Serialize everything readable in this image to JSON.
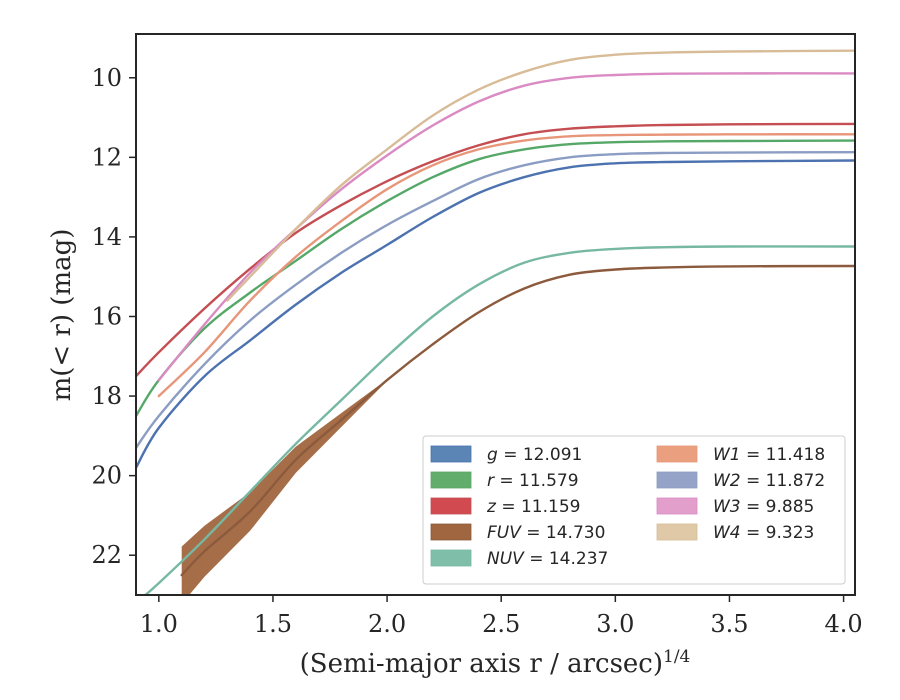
{
  "chart_data": {
    "type": "line",
    "xlabel": "(Semi-major axis r / arcsec)",
    "xlabel_exponent": "1/4",
    "ylabel": "m(< r) (mag)",
    "xlim": [
      0.9,
      4.05
    ],
    "ylim": [
      23.0,
      8.9
    ],
    "y_inverted": true,
    "x_ticks": [
      1.0,
      1.5,
      2.0,
      2.5,
      3.0,
      3.5,
      4.0
    ],
    "x_tick_labels": [
      "1.0",
      "1.5",
      "2.0",
      "2.5",
      "3.0",
      "3.5",
      "4.0"
    ],
    "y_ticks": [
      10,
      12,
      14,
      16,
      18,
      20,
      22
    ],
    "y_tick_labels": [
      "10",
      "12",
      "14",
      "16",
      "18",
      "20",
      "22"
    ],
    "grid": false,
    "legend_position": "lower-right",
    "series": [
      {
        "name": "g",
        "label_value": "12.091",
        "color": "#4c72b0",
        "fill": "#5a85b5",
        "x": [
          0.9,
          1.0,
          1.2,
          1.4,
          1.6,
          1.8,
          2.0,
          2.2,
          2.4,
          2.6,
          2.8,
          3.0,
          3.2,
          3.5,
          4.05
        ],
        "y": [
          19.8,
          18.8,
          17.5,
          16.6,
          15.7,
          14.9,
          14.2,
          13.5,
          12.9,
          12.5,
          12.25,
          12.15,
          12.12,
          12.1,
          12.08
        ]
      },
      {
        "name": "r",
        "label_value": "11.579",
        "color": "#55a868",
        "fill": "#62ad6c",
        "x": [
          0.9,
          1.0,
          1.2,
          1.4,
          1.6,
          1.8,
          2.0,
          2.2,
          2.4,
          2.6,
          2.8,
          3.0,
          3.2,
          3.5,
          4.05
        ],
        "y": [
          18.5,
          17.6,
          16.3,
          15.4,
          14.6,
          13.8,
          13.1,
          12.5,
          12.05,
          11.8,
          11.67,
          11.62,
          11.6,
          11.59,
          11.58
        ]
      },
      {
        "name": "z",
        "label_value": "11.159",
        "color": "#c44e52",
        "fill": "#d04a4f",
        "x": [
          0.9,
          1.0,
          1.2,
          1.4,
          1.6,
          1.8,
          2.0,
          2.2,
          2.4,
          2.6,
          2.8,
          3.0,
          3.2,
          3.5,
          4.05
        ],
        "y": [
          17.5,
          16.9,
          15.8,
          14.8,
          13.9,
          13.2,
          12.6,
          12.1,
          11.7,
          11.42,
          11.28,
          11.22,
          11.19,
          11.17,
          11.16
        ]
      },
      {
        "name": "FUV",
        "label_value": "14.730",
        "color": "#8c5a3c",
        "fill": "#a0663f",
        "x": [
          1.1,
          1.2,
          1.4,
          1.6,
          1.8,
          2.0,
          2.2,
          2.4,
          2.6,
          2.8,
          3.0,
          3.2,
          3.5,
          4.05
        ],
        "y": [
          22.5,
          21.9,
          20.9,
          19.6,
          18.6,
          17.6,
          16.7,
          15.9,
          15.3,
          14.95,
          14.82,
          14.77,
          14.74,
          14.73
        ]
      },
      {
        "name": "NUV",
        "label_value": "14.237",
        "color": "#76b8a3",
        "fill": "#7fbfaa",
        "x": [
          0.9,
          1.0,
          1.2,
          1.4,
          1.6,
          1.8,
          2.0,
          2.2,
          2.4,
          2.6,
          2.8,
          3.0,
          3.2,
          3.5,
          4.05
        ],
        "y": [
          23.2,
          22.7,
          21.6,
          20.4,
          19.2,
          18.1,
          17.0,
          16.0,
          15.2,
          14.65,
          14.4,
          14.3,
          14.26,
          14.24,
          14.24
        ]
      },
      {
        "name": "W1",
        "label_value": "11.418",
        "color": "#e8967a",
        "fill": "#eaa07f",
        "x": [
          1.0,
          1.2,
          1.4,
          1.6,
          1.8,
          2.0,
          2.2,
          2.4,
          2.6,
          2.8,
          3.0,
          3.2,
          3.5,
          4.05
        ],
        "y": [
          18.0,
          16.9,
          15.6,
          14.5,
          13.6,
          12.8,
          12.2,
          11.8,
          11.58,
          11.47,
          11.44,
          11.43,
          11.42,
          11.42
        ]
      },
      {
        "name": "W2",
        "label_value": "11.872",
        "color": "#8c9dc4",
        "fill": "#96a3c8",
        "x": [
          0.9,
          1.0,
          1.2,
          1.4,
          1.6,
          1.8,
          2.0,
          2.2,
          2.4,
          2.6,
          2.8,
          3.0,
          3.2,
          3.5,
          4.05
        ],
        "y": [
          19.3,
          18.5,
          17.2,
          16.1,
          15.2,
          14.4,
          13.7,
          13.1,
          12.55,
          12.2,
          12.0,
          11.92,
          11.89,
          11.88,
          11.87
        ]
      },
      {
        "name": "W3",
        "label_value": "9.885",
        "color": "#da8bc3",
        "fill": "#e29fcb",
        "x": [
          1.0,
          1.2,
          1.4,
          1.6,
          1.8,
          2.0,
          2.2,
          2.4,
          2.6,
          2.8,
          3.0,
          3.2,
          3.5,
          4.05
        ],
        "y": [
          17.6,
          16.2,
          14.9,
          13.8,
          12.8,
          11.95,
          11.2,
          10.6,
          10.2,
          10.0,
          9.93,
          9.9,
          9.89,
          9.89
        ]
      },
      {
        "name": "W4",
        "label_value": "9.323",
        "color": "#d8bc98",
        "fill": "#e0c9a6",
        "x": [
          1.3,
          1.4,
          1.6,
          1.8,
          2.0,
          2.2,
          2.4,
          2.6,
          2.8,
          3.0,
          3.2,
          3.5,
          4.05
        ],
        "y": [
          15.6,
          15.0,
          13.8,
          12.7,
          11.8,
          10.95,
          10.3,
          9.85,
          9.55,
          9.42,
          9.37,
          9.34,
          9.32
        ]
      }
    ]
  }
}
